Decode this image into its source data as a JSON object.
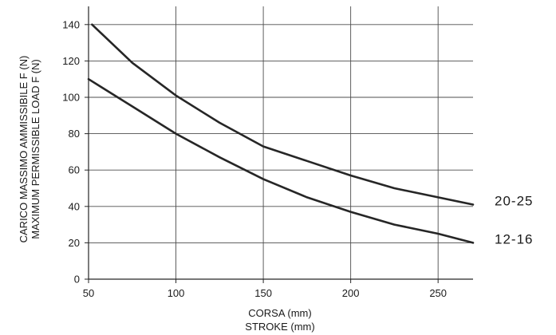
{
  "chart_data": {
    "type": "line",
    "ylabel_lines": [
      "CARICO MASSIMO AMMISSIBILE F (N)",
      "MAXIMUM PERMISSIBLE LOAD F (N)"
    ],
    "xlabel_lines": [
      "CORSA (mm)",
      "STROKE (mm)"
    ],
    "xlim": [
      50,
      270
    ],
    "ylim": [
      0,
      150
    ],
    "x_ticks": [
      50,
      100,
      150,
      200,
      250
    ],
    "y_ticks": [
      0,
      20,
      40,
      60,
      80,
      100,
      120,
      140
    ],
    "grid": true,
    "series": [
      {
        "name": "20-25",
        "x": [
          52,
          75,
          100,
          125,
          150,
          175,
          200,
          225,
          250,
          270
        ],
        "y": [
          140,
          119,
          101,
          86,
          73,
          65,
          57,
          50,
          45,
          41
        ]
      },
      {
        "name": "12-16",
        "x": [
          50,
          75,
          100,
          125,
          150,
          175,
          200,
          225,
          250,
          270
        ],
        "y": [
          110,
          95,
          80,
          67,
          55,
          45,
          37,
          30,
          25,
          20
        ]
      }
    ],
    "colors": {
      "line": "#262626",
      "grid": "#4d4d4d",
      "axis": "#262626"
    }
  }
}
